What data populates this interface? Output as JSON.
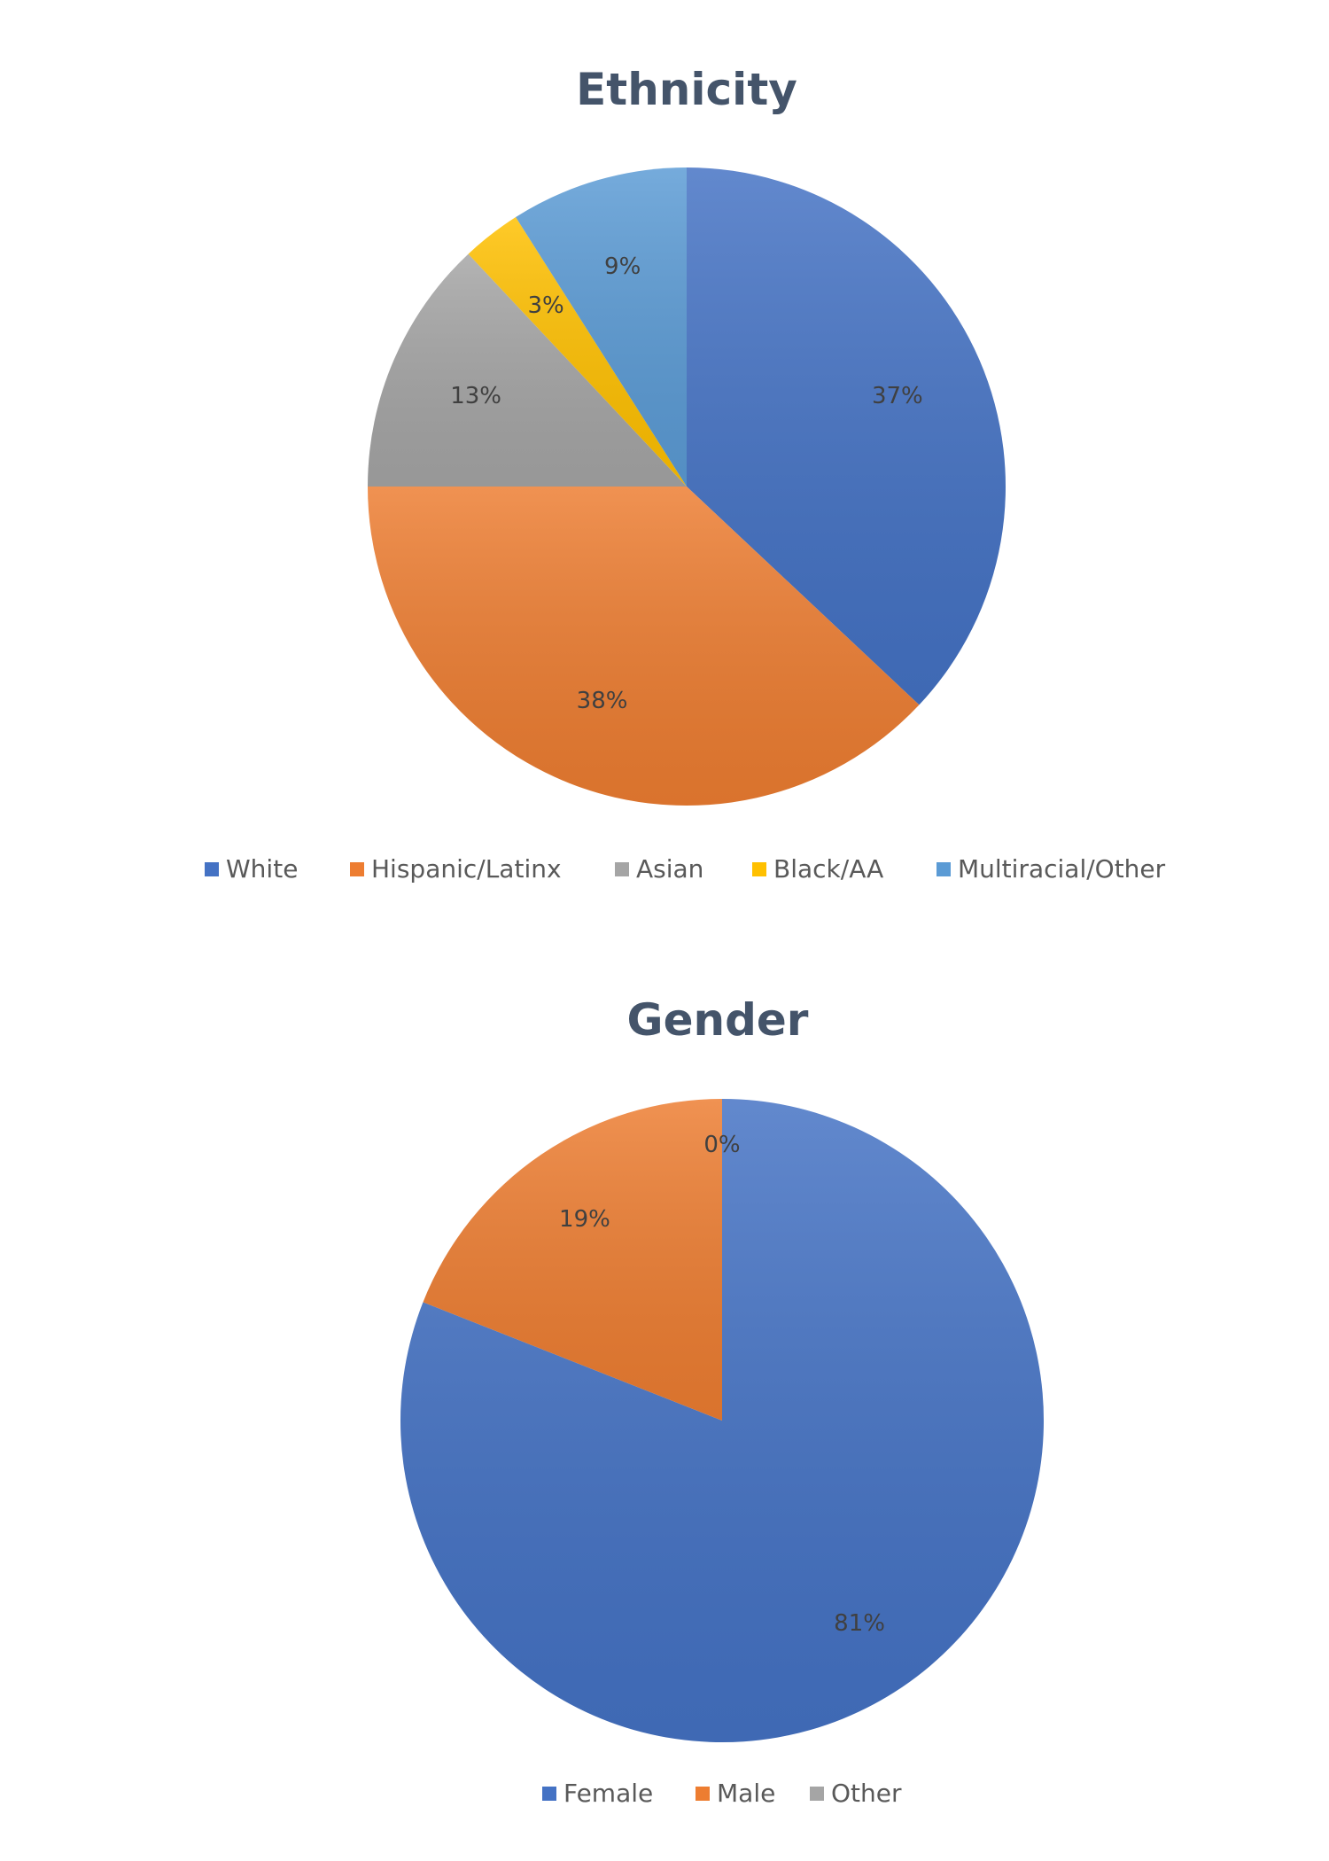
{
  "chart_data": [
    {
      "type": "pie",
      "title": "Ethnicity",
      "categories": [
        "White",
        "Hispanic/Latinx",
        "Asian",
        "Black/AA",
        "Multiracial/Other"
      ],
      "values": [
        37,
        38,
        13,
        3,
        9
      ],
      "labels": [
        "37%",
        "38%",
        "13%",
        "3%",
        "9%"
      ],
      "colors": [
        "#4472c4",
        "#ed7d31",
        "#a5a5a5",
        "#ffc000",
        "#5b9bd5"
      ],
      "legend": "bottom",
      "start_angle_deg": 0,
      "direction": "clockwise"
    },
    {
      "type": "pie",
      "title": "Gender",
      "categories": [
        "Female",
        "Male",
        "Other"
      ],
      "values": [
        81,
        19,
        0
      ],
      "labels": [
        "81%",
        "19%",
        "0%"
      ],
      "colors": [
        "#4472c4",
        "#ed7d31",
        "#a5a5a5"
      ],
      "legend": "bottom",
      "start_angle_deg": 0,
      "direction": "clockwise"
    }
  ]
}
